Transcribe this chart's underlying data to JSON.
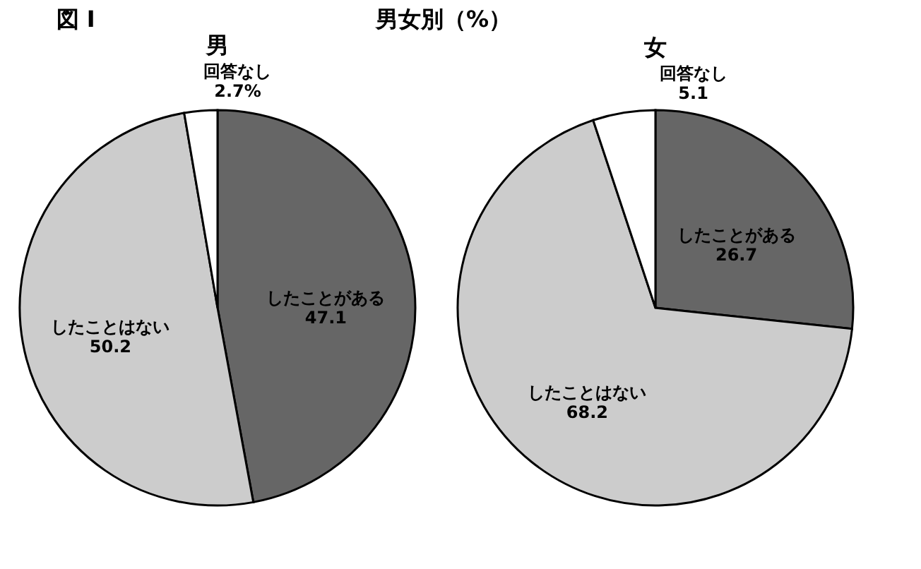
{
  "chart_data": [
    {
      "type": "pie",
      "title": "男",
      "annotations": [
        "図 I",
        "男女別（%）"
      ],
      "categories": [
        "したことがある",
        "したことはない",
        "回答なし"
      ],
      "values": [
        47.1,
        50.2,
        2.7
      ],
      "value_labels": [
        "47.1",
        "50.2",
        "2.7%"
      ],
      "colors": [
        "#666666",
        "#cccccc",
        "#ffffff"
      ],
      "legend": false
    },
    {
      "type": "pie",
      "title": "女",
      "categories": [
        "したことがある",
        "したことはない",
        "回答なし"
      ],
      "values": [
        26.7,
        68.2,
        5.1
      ],
      "value_labels": [
        "26.7",
        "68.2",
        "5.1"
      ],
      "colors": [
        "#666666",
        "#cccccc",
        "#ffffff"
      ],
      "legend": false
    }
  ]
}
